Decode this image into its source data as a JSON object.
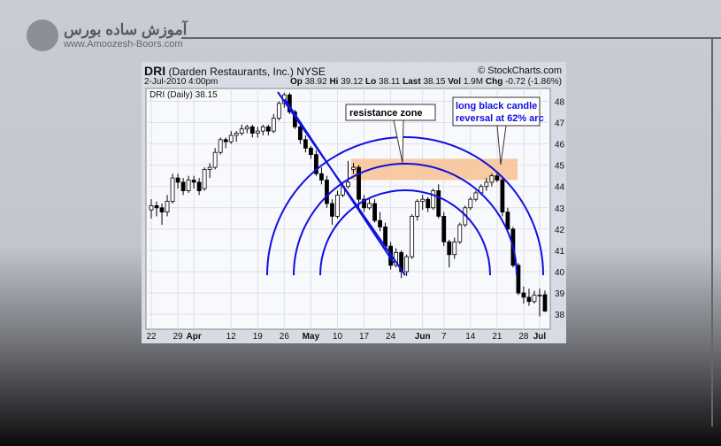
{
  "logo": {
    "name_fa": "آموزش ساده بورس",
    "url": "www.Amoozesh-Boors.com"
  },
  "header": {
    "symbol": "DRI",
    "company": "(Darden Restaurants, Inc.) NYSE",
    "source": "© StockCharts.com",
    "datetime": "2-Jul-2010 4:00pm",
    "quote": [
      {
        "k": "Op",
        "v": "38.92"
      },
      {
        "k": "Hi",
        "v": "39.12"
      },
      {
        "k": "Lo",
        "v": "38.11"
      },
      {
        "k": "Last",
        "v": "38.15"
      },
      {
        "k": "Vol",
        "v": "1.9M"
      },
      {
        "k": "Chg",
        "v": "-0.72 (-1.86%)"
      }
    ],
    "legend": "DRI (Daily) 38.15"
  },
  "chart_data": {
    "type": "candlestick",
    "ylim": [
      37.3,
      48.6
    ],
    "yticks": [
      38,
      39,
      40,
      41,
      42,
      43,
      44,
      45,
      46,
      47,
      48
    ],
    "xticks": [
      {
        "label": "22",
        "i": 0
      },
      {
        "label": "29",
        "i": 5
      },
      {
        "label": "Apr",
        "i": 8
      },
      {
        "label": "12",
        "i": 15
      },
      {
        "label": "19",
        "i": 20
      },
      {
        "label": "26",
        "i": 25
      },
      {
        "label": "May",
        "i": 30
      },
      {
        "label": "10",
        "i": 35
      },
      {
        "label": "17",
        "i": 40
      },
      {
        "label": "24",
        "i": 45
      },
      {
        "label": "Jun",
        "i": 51
      },
      {
        "label": "7",
        "i": 55
      },
      {
        "label": "14",
        "i": 60
      },
      {
        "label": "21",
        "i": 65
      },
      {
        "label": "28",
        "i": 70
      },
      {
        "label": "Jul",
        "i": 73
      }
    ],
    "candles": [
      [
        42.9,
        43.4,
        42.5,
        43.1
      ],
      [
        43.1,
        43.3,
        42.6,
        43.0
      ],
      [
        43.0,
        43.2,
        42.2,
        42.8
      ],
      [
        42.8,
        43.6,
        42.6,
        43.3
      ],
      [
        43.3,
        44.6,
        43.2,
        44.4
      ],
      [
        44.4,
        44.6,
        43.9,
        44.2
      ],
      [
        44.2,
        44.4,
        43.6,
        43.8
      ],
      [
        43.8,
        44.5,
        43.7,
        44.3
      ],
      [
        44.3,
        44.5,
        43.9,
        44.2
      ],
      [
        44.2,
        44.4,
        43.6,
        43.8
      ],
      [
        43.9,
        44.9,
        43.8,
        44.8
      ],
      [
        44.8,
        45.1,
        44.4,
        44.9
      ],
      [
        44.9,
        45.8,
        44.8,
        45.6
      ],
      [
        45.6,
        46.3,
        45.5,
        46.2
      ],
      [
        46.2,
        46.3,
        45.8,
        46.1
      ],
      [
        46.1,
        46.6,
        46.0,
        46.4
      ],
      [
        46.4,
        46.6,
        46.1,
        46.5
      ],
      [
        46.5,
        46.9,
        46.4,
        46.7
      ],
      [
        46.7,
        46.9,
        46.5,
        46.8
      ],
      [
        46.8,
        46.9,
        46.3,
        46.5
      ],
      [
        46.5,
        46.8,
        46.3,
        46.6
      ],
      [
        46.6,
        46.9,
        46.4,
        46.8
      ],
      [
        46.8,
        46.9,
        46.4,
        46.6
      ],
      [
        46.6,
        47.4,
        46.5,
        47.2
      ],
      [
        47.2,
        48.0,
        47.1,
        47.9
      ],
      [
        47.9,
        48.4,
        47.7,
        48.3
      ],
      [
        48.3,
        48.4,
        47.4,
        47.5
      ],
      [
        47.5,
        47.6,
        46.7,
        46.8
      ],
      [
        46.8,
        47.0,
        46.0,
        46.2
      ],
      [
        46.2,
        46.4,
        45.6,
        45.8
      ],
      [
        45.8,
        45.9,
        45.3,
        45.5
      ],
      [
        45.5,
        45.7,
        44.5,
        44.6
      ],
      [
        44.6,
        44.9,
        44.1,
        44.3
      ],
      [
        44.3,
        44.5,
        43.0,
        43.2
      ],
      [
        43.2,
        43.4,
        42.2,
        42.6
      ],
      [
        42.6,
        43.8,
        42.5,
        43.6
      ],
      [
        43.6,
        44.2,
        43.5,
        44.0
      ],
      [
        44.0,
        45.2,
        43.9,
        44.2
      ],
      [
        44.8,
        45.1,
        44.6,
        44.9
      ],
      [
        44.9,
        45.0,
        43.0,
        43.4
      ],
      [
        43.4,
        43.6,
        42.8,
        43.0
      ],
      [
        43.0,
        43.5,
        42.9,
        43.2
      ],
      [
        43.2,
        43.4,
        42.3,
        42.4
      ],
      [
        42.4,
        42.8,
        41.9,
        42.1
      ],
      [
        42.1,
        42.3,
        41.0,
        41.2
      ],
      [
        41.2,
        41.4,
        40.1,
        40.3
      ],
      [
        40.3,
        41.1,
        40.2,
        40.9
      ],
      [
        40.9,
        41.0,
        39.7,
        40.0
      ],
      [
        40.0,
        40.8,
        39.8,
        40.7
      ],
      [
        40.7,
        42.7,
        40.6,
        42.6
      ],
      [
        42.6,
        43.4,
        42.4,
        43.3
      ],
      [
        43.3,
        43.6,
        42.9,
        43.4
      ],
      [
        43.4,
        43.5,
        42.8,
        43.0
      ],
      [
        43.0,
        43.9,
        42.9,
        43.8
      ],
      [
        43.8,
        44.1,
        42.5,
        42.6
      ],
      [
        42.6,
        42.8,
        41.2,
        41.4
      ],
      [
        41.4,
        41.5,
        40.2,
        40.8
      ],
      [
        40.8,
        41.6,
        40.6,
        41.4
      ],
      [
        41.4,
        42.3,
        41.3,
        42.2
      ],
      [
        42.2,
        43.1,
        42.1,
        43.0
      ],
      [
        43.0,
        43.5,
        42.9,
        43.4
      ],
      [
        43.4,
        43.8,
        43.3,
        43.7
      ],
      [
        43.7,
        44.1,
        43.6,
        44.0
      ],
      [
        44.0,
        44.4,
        43.8,
        44.2
      ],
      [
        44.2,
        44.6,
        44.0,
        44.5
      ],
      [
        44.5,
        44.7,
        44.2,
        44.3
      ],
      [
        44.3,
        44.4,
        42.6,
        42.8
      ],
      [
        42.8,
        43.0,
        41.9,
        42.0
      ],
      [
        42.0,
        42.1,
        40.2,
        40.3
      ],
      [
        40.3,
        40.4,
        38.9,
        39.0
      ],
      [
        39.0,
        39.3,
        38.5,
        38.8
      ],
      [
        38.8,
        39.2,
        38.4,
        38.6
      ],
      [
        38.6,
        39.1,
        38.5,
        38.9
      ],
      [
        38.9,
        39.2,
        37.9,
        38.9
      ],
      [
        38.92,
        39.12,
        38.11,
        38.15
      ]
    ],
    "annotations": {
      "zone_label": "resistance zone",
      "zone_range": [
        44.3,
        45.3
      ],
      "callout": "long black candle reversal at 62% arc"
    },
    "colors": {
      "up": "#ffffff",
      "down": "#000000",
      "arc": "#1010e0",
      "zone": "#f7c293",
      "callout_text": "#1010e0"
    }
  }
}
